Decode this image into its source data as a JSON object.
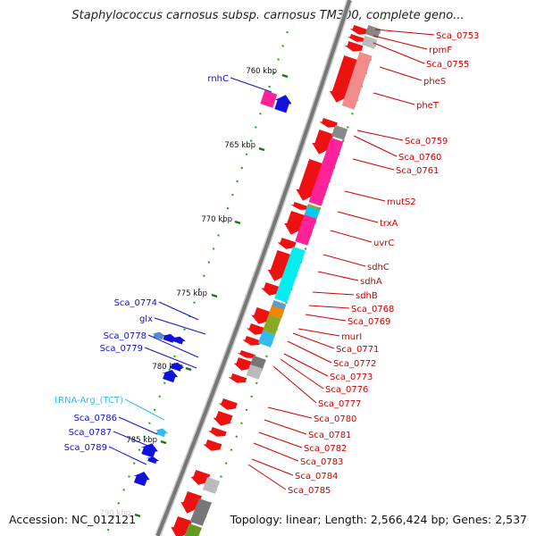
{
  "title": "Staphylococcus carnosus subsp. carnosus TM300, complete geno...",
  "accession": "Accession: NC_012121",
  "summary": "Topology: linear; Length: 2,566,424 bp; Genes: 2,537",
  "ruler": [
    "760 kbp",
    "765 kbp",
    "770 kbp",
    "775 kbp",
    "780 kbp",
    "785 kbp",
    "790 kbp"
  ],
  "labels_right": [
    "Sca_0753",
    "rpmF",
    "Sca_0755",
    "pheS",
    "pheT",
    "Sca_0759",
    "Sca_0760",
    "Sca_0761",
    "mutS2",
    "trxA",
    "uvrC",
    "sdhC",
    "sdhA",
    "sdhB",
    "Sca_0768",
    "Sca_0769",
    "murI",
    "Sca_0771",
    "Sca_0772",
    "Sca_0773",
    "Sca_0776",
    "Sca_0777",
    "Sca_0780",
    "Sca_0781",
    "Sca_0782",
    "Sca_0783",
    "Sca_0784",
    "Sca_0785"
  ],
  "labels_left": [
    "rnhC",
    "Sca_0774",
    "glx",
    "Sca_0778",
    "Sca_0779",
    "tRNA-Arg_(TCT)",
    "Sca_0786",
    "Sca_0787",
    "Sca_0789"
  ],
  "colors": {
    "forward_gene": "#ee1111",
    "reverse_gene": "#1111dd",
    "trna": "#33bbee",
    "label_right": "#cc0000",
    "label_left": "#1111cc",
    "backbone": "#777777",
    "ruler_dots": "#22aa22"
  }
}
